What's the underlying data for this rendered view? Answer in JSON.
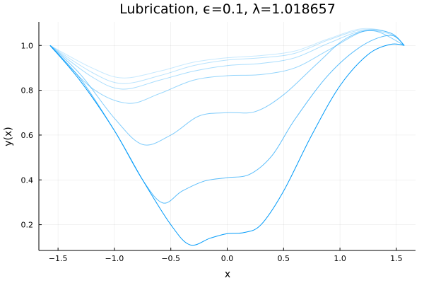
{
  "chart_data": {
    "type": "line",
    "title": "Lubrication, ϵ=0.1, λ=1.018657",
    "xlabel": "x",
    "ylabel": "y(x)",
    "xlim": [
      -1.67,
      1.67
    ],
    "ylim": [
      0.085,
      1.105
    ],
    "xticks": [
      {
        "value": -1.5,
        "label": "−1.5"
      },
      {
        "value": -1.0,
        "label": "−1.0"
      },
      {
        "value": -0.5,
        "label": "−0.5"
      },
      {
        "value": 0.0,
        "label": "0.0"
      },
      {
        "value": 0.5,
        "label": "0.5"
      },
      {
        "value": 1.0,
        "label": "1.0"
      },
      {
        "value": 1.5,
        "label": "1.5"
      }
    ],
    "yticks": [
      {
        "value": 0.2,
        "label": "0.2"
      },
      {
        "value": 0.4,
        "label": "0.4"
      },
      {
        "value": 0.6,
        "label": "0.6"
      },
      {
        "value": 0.8,
        "label": "0.8"
      },
      {
        "value": 1.0,
        "label": "1.0"
      }
    ],
    "grid": true,
    "legend": "none",
    "color": "#009af9",
    "series": [
      {
        "opacity": 0.22,
        "x": [
          -1.5708,
          -1.2,
          -0.93,
          -0.6,
          -0.3,
          0.0,
          0.3,
          0.6,
          0.9,
          1.2,
          1.45,
          1.5708
        ],
        "y": [
          1.0,
          0.9,
          0.855,
          0.885,
          0.925,
          0.945,
          0.955,
          0.975,
          1.03,
          1.075,
          1.055,
          1.0
        ]
      },
      {
        "opacity": 0.28,
        "x": [
          -1.5708,
          -1.2,
          -0.93,
          -0.6,
          -0.3,
          0.0,
          0.3,
          0.6,
          0.9,
          1.2,
          1.45,
          1.5708
        ],
        "y": [
          1.0,
          0.88,
          0.83,
          0.865,
          0.91,
          0.935,
          0.945,
          0.965,
          1.025,
          1.07,
          1.055,
          1.0
        ]
      },
      {
        "opacity": 0.34,
        "x": [
          -1.5708,
          -1.2,
          -0.93,
          -0.6,
          -0.3,
          0.0,
          0.3,
          0.6,
          0.9,
          1.2,
          1.45,
          1.5708
        ],
        "y": [
          1.0,
          0.86,
          0.805,
          0.845,
          0.885,
          0.91,
          0.92,
          0.945,
          1.01,
          1.065,
          1.05,
          1.0
        ]
      },
      {
        "opacity": 0.42,
        "x": [
          -1.5708,
          -1.2,
          -0.88,
          -0.6,
          -0.3,
          0.0,
          0.3,
          0.6,
          0.9,
          1.22,
          1.45,
          1.5708
        ],
        "y": [
          1.0,
          0.81,
          0.742,
          0.785,
          0.845,
          0.865,
          0.87,
          0.9,
          0.98,
          1.065,
          1.055,
          1.0
        ]
      },
      {
        "opacity": 0.5,
        "x": [
          -1.5708,
          -1.3,
          -1.0,
          -0.75,
          -0.5,
          -0.25,
          0.0,
          0.25,
          0.5,
          0.8,
          1.05,
          1.3,
          1.5708
        ],
        "y": [
          1.0,
          0.87,
          0.675,
          0.558,
          0.6,
          0.685,
          0.7,
          0.705,
          0.78,
          0.92,
          1.03,
          1.065,
          1.0
        ]
      },
      {
        "opacity": 0.65,
        "x": [
          -1.5708,
          -1.3,
          -1.0,
          -0.75,
          -0.57,
          -0.4,
          -0.2,
          0.0,
          0.2,
          0.4,
          0.6,
          0.9,
          1.2,
          1.45,
          1.5708
        ],
        "y": [
          1.0,
          0.85,
          0.62,
          0.4,
          0.297,
          0.35,
          0.395,
          0.41,
          0.425,
          0.51,
          0.67,
          0.87,
          1.0,
          1.045,
          1.0
        ]
      },
      {
        "opacity": 1.0,
        "x": [
          -1.5708,
          -1.3,
          -1.0,
          -0.75,
          -0.5,
          -0.33,
          -0.15,
          0.0,
          0.15,
          0.3,
          0.5,
          0.75,
          1.0,
          1.25,
          1.45,
          1.5708
        ],
        "y": [
          1.0,
          0.84,
          0.62,
          0.4,
          0.2,
          0.11,
          0.14,
          0.16,
          0.165,
          0.2,
          0.35,
          0.6,
          0.82,
          0.96,
          1.005,
          1.0
        ]
      }
    ]
  }
}
